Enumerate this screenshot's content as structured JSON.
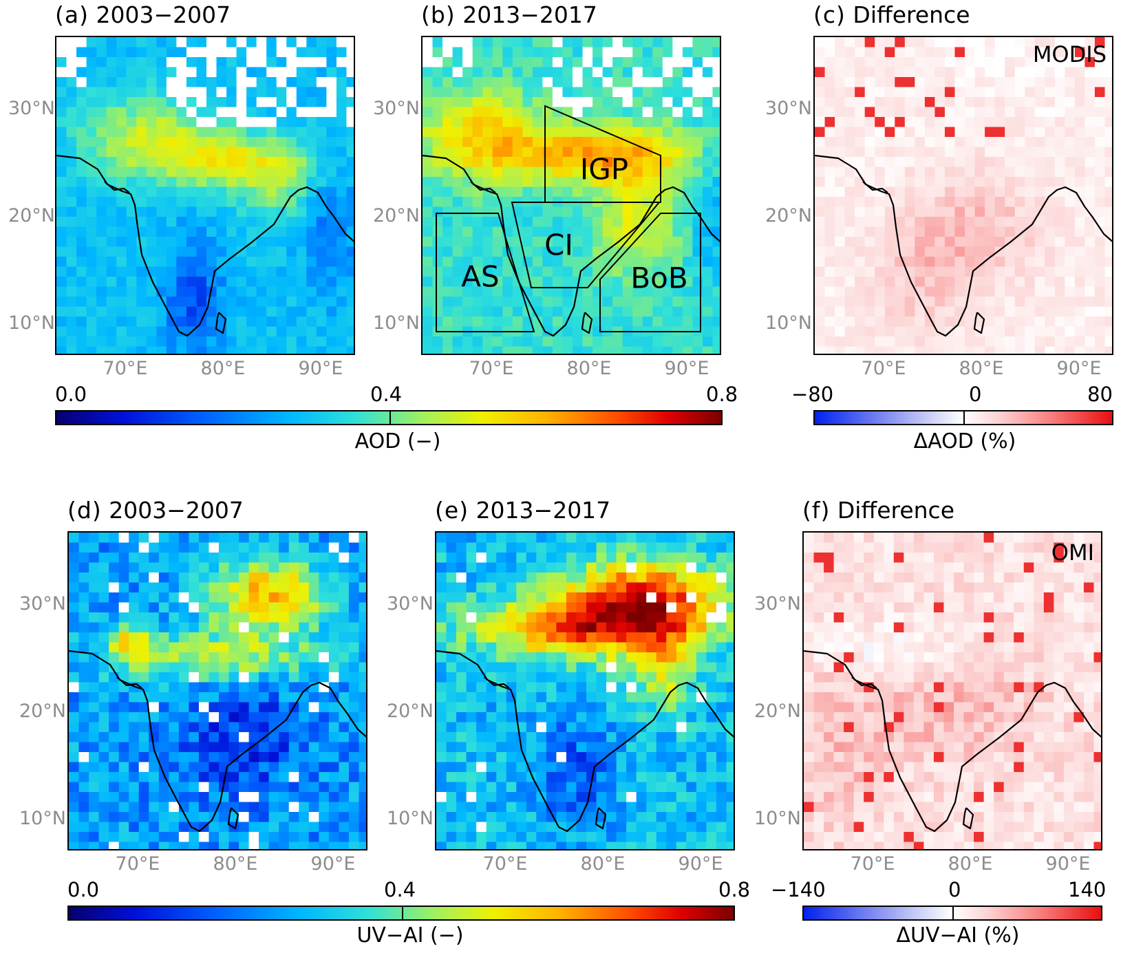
{
  "figure": {
    "panels": [
      {
        "id": "a",
        "letter": "a",
        "title": "2003−2007"
      },
      {
        "id": "b",
        "letter": "b",
        "title": "2013−2017"
      },
      {
        "id": "c",
        "letter": "c",
        "title": "Difference",
        "source": "MODIS"
      },
      {
        "id": "d",
        "letter": "d",
        "title": "2003−2007"
      },
      {
        "id": "e",
        "letter": "e",
        "title": "2013−2017"
      },
      {
        "id": "f",
        "letter": "f",
        "title": "Difference",
        "source": "OMI"
      }
    ],
    "lat_labels": [
      "30°N",
      "20°N",
      "10°N"
    ],
    "lon_labels": [
      "70°E",
      "80°E",
      "90°E"
    ],
    "regions": [
      {
        "name": "IGP"
      },
      {
        "name": "CI"
      },
      {
        "name": "AS"
      },
      {
        "name": "BoB"
      }
    ],
    "colorbars": {
      "aod": {
        "ticks": [
          "0.0",
          "0.4",
          "0.8"
        ],
        "label": "AOD (−)"
      },
      "aod_diff": {
        "ticks": [
          "−80",
          "0",
          "80"
        ],
        "label": "ΔAOD (%)"
      },
      "uvai": {
        "ticks": [
          "0.0",
          "0.4",
          "0.8"
        ],
        "label": "UV−AI (−)"
      },
      "uvai_diff": {
        "ticks": [
          "−140",
          "0",
          "140"
        ],
        "label": "ΔUV−AI (%)"
      }
    },
    "colors": {
      "abs_scale": [
        "#08006e",
        "#0010d8",
        "#0060ff",
        "#00b8ff",
        "#30e0d8",
        "#a0f060",
        "#f0f000",
        "#ffb000",
        "#ff5000",
        "#e00000",
        "#7a0000"
      ],
      "diff_scale": [
        "#0022ee",
        "#6e7cf0",
        "#c8ccf6",
        "#ffffff",
        "#fcd2d2",
        "#f87c7c",
        "#e81010"
      ]
    }
  }
}
